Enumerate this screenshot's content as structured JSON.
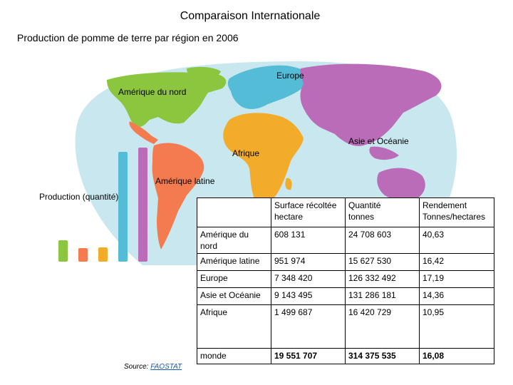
{
  "title": "Comparaison Internationale",
  "subtitle": "Production de pomme de terre par région en 2006",
  "map_labels": {
    "europe": "Europe",
    "north_america": "Amérique du nord",
    "asia": "Asie et Océanie",
    "africa": "Afrique",
    "latin_america": "Amérique latine"
  },
  "production_label": "Production (quantité)",
  "source": {
    "prefix": "Source: ",
    "link": "FAOSTAT"
  },
  "colors": {
    "ocean": "#c8e7ef",
    "north_america": "#8cc63f",
    "latin_america": "#f47b4f",
    "africa": "#f2ac2a",
    "europe": "#55bcd8",
    "asia": "#bb6cb8"
  },
  "chart_data": {
    "type": "table",
    "title": "Production de pomme de terre par région en 2006",
    "columns": [
      "",
      "Surface récoltée hectare",
      "Quantité tonnes",
      "Rendement Tonnes/hectares"
    ],
    "header": {
      "c1_line1": "Surface récoltée",
      "c1_line2": "hectare",
      "c2_line1": "Quantité",
      "c2_line2": "tonnes",
      "c3_line1": "Rendement",
      "c3_line2": "Tonnes/hectares"
    },
    "rows": [
      {
        "region": "Amérique du nord",
        "surface": "608 131",
        "quantite": "24 708 603",
        "rendement": "40,63"
      },
      {
        "region": "Amérique latine",
        "surface": "951 974",
        "quantite": "15 627 530",
        "rendement": "16,42"
      },
      {
        "region": "Europe",
        "surface": "7 348 420",
        "quantite": "126 332 492",
        "rendement": "17,19"
      },
      {
        "region": "Asie et Océanie",
        "surface": "9 143 495",
        "quantite": "131 286 181",
        "rendement": "14,36"
      },
      {
        "region": "Afrique",
        "surface": "1 499 687",
        "quantite": "16 420 729",
        "rendement": "10,95"
      },
      {
        "region": "monde",
        "surface": "19 551 707",
        "quantite": "314 375 535",
        "rendement": "16,08"
      }
    ],
    "bars": {
      "type": "bar",
      "categories": [
        "Amérique du nord",
        "Amérique latine",
        "Afrique",
        "Europe",
        "Asie et Océanie"
      ],
      "values": [
        24708603,
        15627530,
        16420729,
        126332492,
        131286181
      ]
    }
  }
}
